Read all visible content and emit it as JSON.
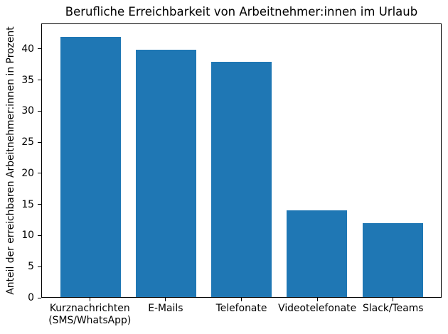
{
  "chart_data": {
    "type": "bar",
    "title": "Berufliche Erreichbarkeit von Arbeitnehmer:innen im Urlaub",
    "ylabel": "Anteil der erreichbaren Arbeitnehmer:innen in Prozent",
    "xlabel": "",
    "categories": [
      "Kurznachrichten\n(SMS/WhatsApp)",
      "E-Mails",
      "Telefonate",
      "Videotelefonate",
      "Slack/Teams"
    ],
    "values": [
      42,
      40,
      38,
      14,
      12
    ],
    "yticks": [
      0,
      5,
      10,
      15,
      20,
      25,
      30,
      35,
      40
    ],
    "ylim": [
      0,
      44.1
    ],
    "bar_color": "#1f77b4",
    "bar_width_ratio": 0.8,
    "grid": false,
    "legend": "none",
    "background_color": "#ffffff",
    "spine_color": "#000000"
  }
}
